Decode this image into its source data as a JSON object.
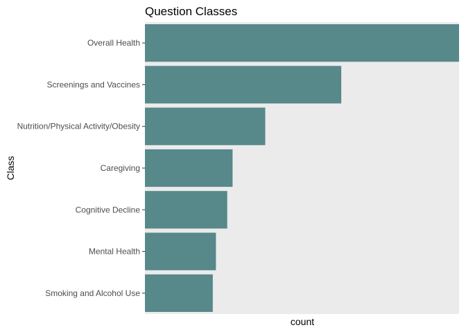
{
  "chart_data": {
    "type": "bar",
    "orientation": "horizontal",
    "title": "Question Classes",
    "xlabel": "count",
    "ylabel": "Class",
    "categories": [
      "Overall Health",
      "Screenings and Vaccines",
      "Nutrition/Physical Activity/Obesity",
      "Caregiving",
      "Cognitive Decline",
      "Mental Health",
      "Smoking and Alcohol Use"
    ],
    "values": [
      100,
      62.5,
      38.3,
      27.9,
      26.2,
      22.6,
      21.6
    ],
    "xlim": [
      0,
      100
    ],
    "x_ticks_shown": false,
    "grid": false,
    "legend": "none",
    "colors": {
      "bar": "#57888a",
      "panel_background": "#ebebeb",
      "tick_label": "#4d4d4d"
    }
  }
}
